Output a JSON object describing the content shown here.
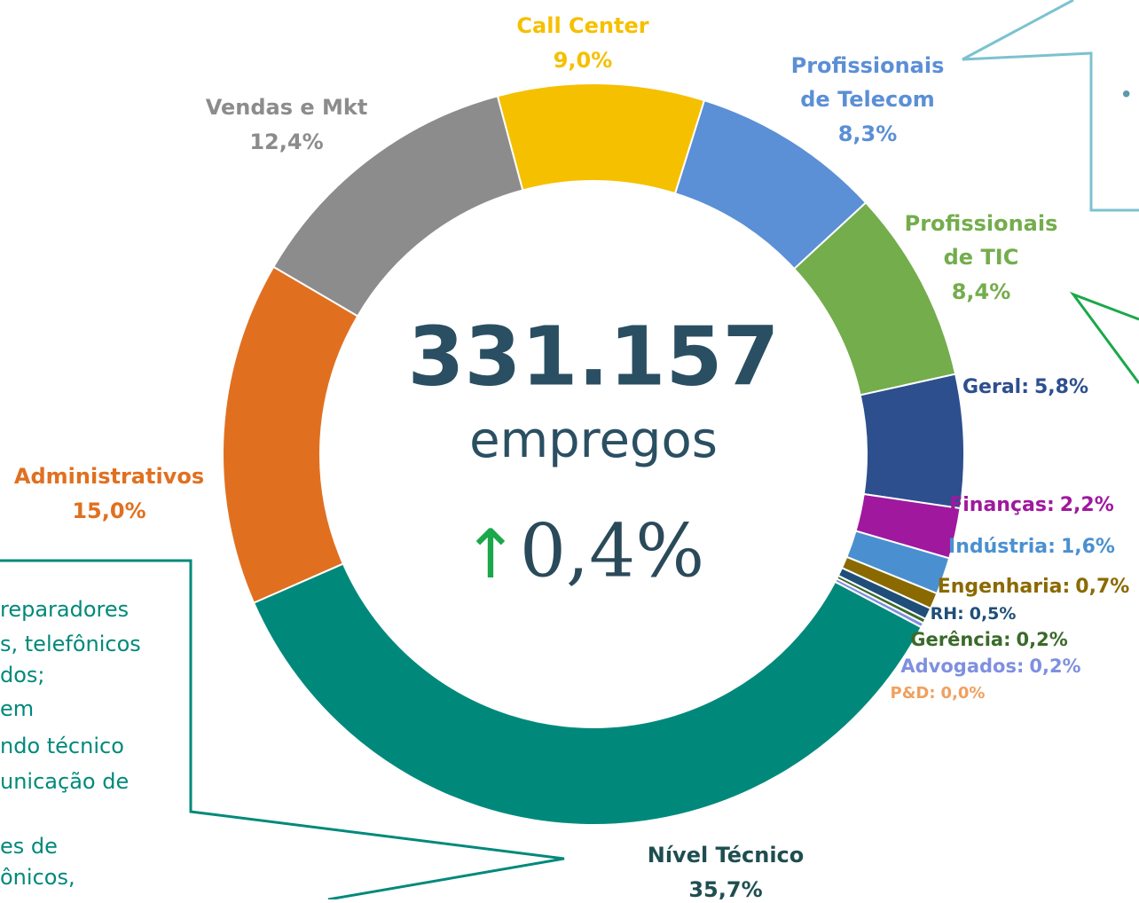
{
  "chart_data": {
    "type": "donut",
    "categories": [
      "Call Center",
      "Profissionais de Telecom",
      "Profissionais de TIC",
      "Geral:",
      "Finanças:",
      "Indústria:",
      "Engenharia:",
      "RH:",
      "Gerência:",
      "Advogados:",
      "P&D:",
      "Nível Técnico",
      "Administrativos",
      "Vendas e Mkt"
    ],
    "values": [
      9.0,
      8.3,
      8.4,
      5.8,
      2.2,
      1.6,
      0.7,
      0.5,
      0.2,
      0.2,
      0.0,
      35.7,
      15.0,
      12.4
    ],
    "value_labels": [
      "9,0%",
      "8,3%",
      "8,4%",
      "5,8%",
      "2,2%",
      "1,6%",
      "0,7%",
      "0,5%",
      "0,2%",
      "0,2%",
      "0,0%",
      "35,7%",
      "15,0%",
      "12,4%"
    ],
    "colors": [
      "#f5c000",
      "#5b8fd6",
      "#74ad4c",
      "#2d4f8e",
      "#a0189e",
      "#4a90d0",
      "#8a6a00",
      "#1f4e79",
      "#3a6a2a",
      "#7f8fe0",
      "#f0a060",
      "#00897b",
      "#e07020",
      "#8c8c8c"
    ],
    "center": {
      "total": "331.157",
      "unit": "empregos",
      "arrow": "↑",
      "change": "0,4%"
    },
    "callout": {
      "lines": [
        "reparadores",
        "s, telefônicos",
        "dos;",
        "em",
        "ndo técnico",
        "unicação de",
        "es de",
        "ônicos,"
      ],
      "bullet": "•"
    }
  }
}
